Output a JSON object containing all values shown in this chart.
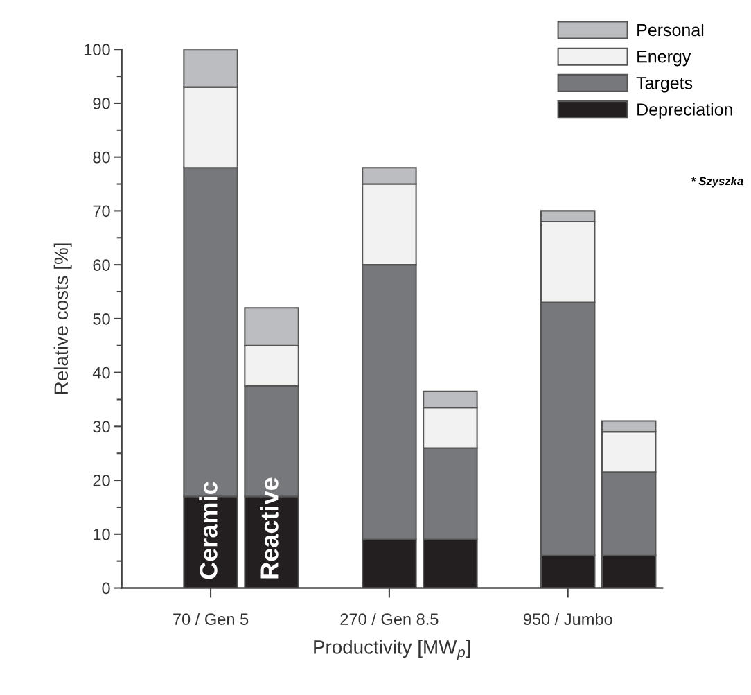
{
  "chart_data": {
    "type": "bar",
    "stacked": true,
    "xlabel": "Productivity [MW$_{p}$]",
    "ylabel": "Relative costs [%]",
    "categories": [
      "70 / Gen 5",
      null,
      "270 / Gen 8.5",
      null,
      "950 / Jumbo",
      null
    ],
    "series": [
      {
        "name": "Depreciation",
        "color": "#231f20",
        "values": [
          17,
          17,
          9,
          9,
          6,
          6
        ]
      },
      {
        "name": "Targets",
        "color": "#77787b",
        "values": [
          61,
          20.5,
          51,
          17,
          47,
          15.5
        ]
      },
      {
        "name": "Energy",
        "color": "#f2f2f2",
        "values": [
          15,
          7.5,
          15,
          7.5,
          15,
          7.5
        ]
      },
      {
        "name": "Personal",
        "color": "#bcbdc0",
        "values": [
          7,
          7,
          3,
          3,
          2,
          2
        ]
      }
    ],
    "ylim": [
      0,
      100
    ],
    "yticks": [
      0,
      10,
      20,
      30,
      40,
      50,
      60,
      70,
      80,
      90,
      100
    ],
    "legend": "top right",
    "grid": false,
    "annotations": [
      "Ceramic",
      "Reactive",
      "* Szyszka"
    ]
  }
}
